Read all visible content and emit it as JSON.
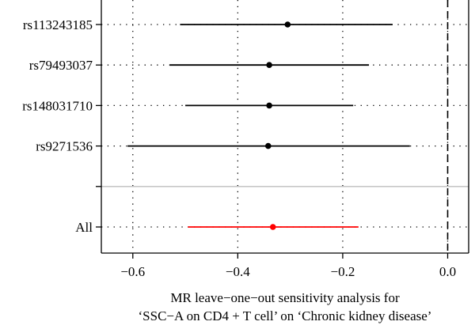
{
  "chart_data": {
    "type": "forest",
    "title": "",
    "xlabel": [
      "MR leave−one−out sensitivity analysis for",
      "‘SSC−A on CD4 + T cell’ on ‘Chronic kidney disease’"
    ],
    "ylabel": "",
    "xlim": [
      -0.66,
      0.04
    ],
    "xticks": [
      -0.6,
      -0.4,
      -0.2,
      0.0
    ],
    "xtick_labels": [
      "−0.6",
      "−0.4",
      "−0.2",
      "0.0"
    ],
    "reference_line": 0.0,
    "grid": "dotted",
    "separator": true,
    "rows": [
      {
        "label": "rs113243185",
        "estimate": -0.305,
        "lower": -0.51,
        "upper": -0.105,
        "color": "#000000"
      },
      {
        "label": "rs79493037",
        "estimate": -0.34,
        "lower": -0.53,
        "upper": -0.15,
        "color": "#000000"
      },
      {
        "label": "rs148031710",
        "estimate": -0.34,
        "lower": -0.5,
        "upper": -0.18,
        "color": "#000000"
      },
      {
        "label": "rs9271536",
        "estimate": -0.342,
        "lower": -0.61,
        "upper": -0.072,
        "color": "#000000"
      },
      {
        "label": "",
        "estimate": null,
        "lower": null,
        "upper": null,
        "color": "#000000",
        "blank": true
      },
      {
        "label": "All",
        "estimate": -0.333,
        "lower": -0.495,
        "upper": -0.17,
        "color": "#ff0000"
      }
    ]
  }
}
